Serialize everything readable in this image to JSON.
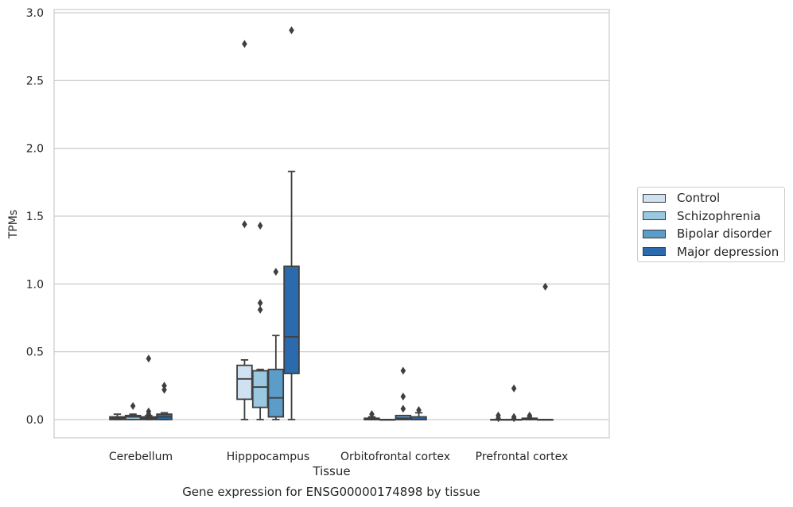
{
  "chart_data": {
    "type": "box",
    "title": "Gene expression for ENSG00000174898 by tissue",
    "xlabel": "Tissue",
    "ylabel": "TPMs",
    "ylim": [
      -0.14,
      3.02
    ],
    "yticks": [
      0.0,
      0.5,
      1.0,
      1.5,
      2.0,
      2.5,
      3.0
    ],
    "ytick_labels": [
      "0.0",
      "0.5",
      "1.0",
      "1.5",
      "2.0",
      "2.5",
      "3.0"
    ],
    "grid": "horizontal",
    "legend_position": "right",
    "categories": [
      "Cerebellum",
      "Hipppocampus",
      "Orbitofrontal cortex",
      "Prefrontal cortex"
    ],
    "series": [
      {
        "name": "Control",
        "color": "#d0e1f2",
        "boxes": [
          {
            "whisker_low": 0.0,
            "q1": 0.0,
            "median": 0.01,
            "q3": 0.02,
            "whisker_high": 0.04,
            "outliers": []
          },
          {
            "whisker_low": 0.0,
            "q1": 0.15,
            "median": 0.3,
            "q3": 0.4,
            "whisker_high": 0.44,
            "outliers": [
              1.44,
              2.77
            ]
          },
          {
            "whisker_low": 0.0,
            "q1": 0.0,
            "median": 0.0,
            "q3": 0.01,
            "whisker_high": 0.02,
            "outliers": [
              0.04
            ]
          },
          {
            "whisker_low": 0.0,
            "q1": 0.0,
            "median": 0.0,
            "q3": 0.0,
            "whisker_high": 0.0,
            "outliers": [
              0.01,
              0.03
            ]
          }
        ]
      },
      {
        "name": "Schizophrenia",
        "color": "#9ac8e0",
        "boxes": [
          {
            "whisker_low": 0.0,
            "q1": 0.0,
            "median": 0.02,
            "q3": 0.03,
            "whisker_high": 0.04,
            "outliers": [
              0.1
            ]
          },
          {
            "whisker_low": 0.0,
            "q1": 0.09,
            "median": 0.24,
            "q3": 0.36,
            "whisker_high": 0.37,
            "outliers": [
              0.81,
              0.86,
              1.43
            ]
          },
          {
            "whisker_low": 0.0,
            "q1": 0.0,
            "median": 0.0,
            "q3": 0.0,
            "whisker_high": 0.0,
            "outliers": []
          },
          {
            "whisker_low": 0.0,
            "q1": 0.0,
            "median": 0.0,
            "q3": 0.0,
            "whisker_high": 0.0,
            "outliers": [
              0.01,
              0.02,
              0.23
            ]
          }
        ]
      },
      {
        "name": "Bipolar disorder",
        "color": "#5b9cc9",
        "boxes": [
          {
            "whisker_low": 0.0,
            "q1": 0.0,
            "median": 0.01,
            "q3": 0.02,
            "whisker_high": 0.03,
            "outliers": [
              0.04,
              0.06,
              0.45
            ]
          },
          {
            "whisker_low": 0.0,
            "q1": 0.02,
            "median": 0.16,
            "q3": 0.37,
            "whisker_high": 0.62,
            "outliers": [
              1.09
            ]
          },
          {
            "whisker_low": 0.0,
            "q1": 0.0,
            "median": 0.01,
            "q3": 0.03,
            "whisker_high": 0.03,
            "outliers": [
              0.08,
              0.17,
              0.36
            ]
          },
          {
            "whisker_low": 0.0,
            "q1": 0.0,
            "median": 0.0,
            "q3": 0.01,
            "whisker_high": 0.01,
            "outliers": [
              0.02,
              0.03
            ]
          }
        ]
      },
      {
        "name": "Major depression",
        "color": "#2a6aad",
        "boxes": [
          {
            "whisker_low": 0.0,
            "q1": 0.0,
            "median": 0.02,
            "q3": 0.04,
            "whisker_high": 0.05,
            "outliers": [
              0.22,
              0.25
            ]
          },
          {
            "whisker_low": 0.0,
            "q1": 0.34,
            "median": 0.61,
            "q3": 1.13,
            "whisker_high": 1.83,
            "outliers": [
              2.87
            ]
          },
          {
            "whisker_low": 0.0,
            "q1": 0.0,
            "median": 0.0,
            "q3": 0.02,
            "whisker_high": 0.05,
            "outliers": [
              0.07
            ]
          },
          {
            "whisker_low": 0.0,
            "q1": 0.0,
            "median": 0.0,
            "q3": 0.0,
            "whisker_high": 0.0,
            "outliers": [
              0.98
            ]
          }
        ]
      }
    ]
  }
}
